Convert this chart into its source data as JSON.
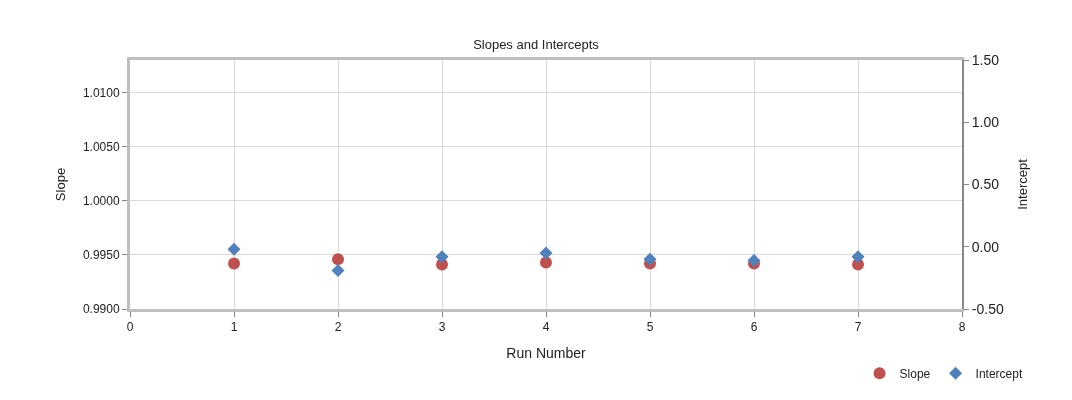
{
  "chart_data": {
    "type": "scatter",
    "title": "Slopes and Intercepts",
    "xlabel": "Run Number",
    "ylabel": "Slope",
    "y2label": "Intercept",
    "x": [
      1,
      2,
      3,
      4,
      5,
      6,
      7
    ],
    "series": [
      {
        "name": "Slope",
        "color": "#c0504d",
        "marker": "circle",
        "values": [
          0.9942,
          0.9946,
          0.9941,
          0.9943,
          0.9942,
          0.9942,
          0.9941
        ]
      },
      {
        "name": "Intercept",
        "color": "#4f81bd",
        "marker": "diamond",
        "axis": "y2",
        "values": [
          -0.02,
          -0.19,
          -0.08,
          -0.05,
          -0.1,
          -0.11,
          -0.08
        ]
      }
    ],
    "xlim": [
      0,
      8
    ],
    "xticks": [
      0,
      1,
      2,
      3,
      4,
      5,
      6,
      7,
      8
    ],
    "ylim": [
      0.99,
      1.013
    ],
    "yticks": [
      {
        "value": 0.99,
        "label": "0.9900"
      },
      {
        "value": 0.995,
        "label": "0.9950"
      },
      {
        "value": 1.0,
        "label": "1.0000"
      },
      {
        "value": 1.005,
        "label": "1.0050"
      },
      {
        "value": 1.01,
        "label": "1.0100"
      }
    ],
    "y2lim": [
      -0.5,
      1.5
    ],
    "y2ticks": [
      {
        "value": -0.5,
        "label": "-0.50"
      },
      {
        "value": 0,
        "label": "0.00"
      },
      {
        "value": 0.5,
        "label": "0.50"
      },
      {
        "value": 1.0,
        "label": "1.00"
      },
      {
        "value": 1.5,
        "label": "1.50"
      }
    ],
    "grid": true,
    "legend": "bottom right"
  }
}
